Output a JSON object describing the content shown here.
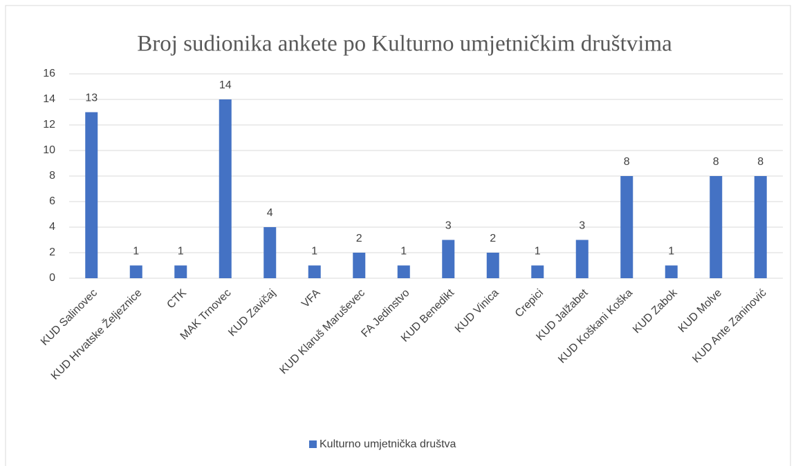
{
  "chart_data": {
    "type": "bar",
    "title": "Broj sudionika ankete po Kulturno  umjetničkim  društvima",
    "categories": [
      "KUD Salinovec",
      "KUD Hrvatske Željeznice",
      "CTK",
      "MAK Trnovec",
      "KUD Zavičaj",
      "VFA",
      "KUD Klaruš Maruševec",
      "FA Jedinstvo",
      "KUD Benedikt",
      "KUD Vinica",
      "Crepici",
      "KUD Jalžabet",
      "KUD Koškani Koška",
      "KUD Zabok",
      "KUD Molve",
      "KUD Ante Zaninović"
    ],
    "series": [
      {
        "name": "Kulturno umjetnička društva",
        "color": "#4472c4",
        "values": [
          13,
          1,
          1,
          14,
          4,
          1,
          2,
          1,
          3,
          2,
          1,
          3,
          8,
          1,
          8,
          8
        ]
      }
    ],
    "ylim": [
      0,
      16
    ],
    "yticks": [
      0,
      2,
      4,
      6,
      8,
      10,
      12,
      14,
      16
    ],
    "grid": true,
    "legend": "bottom"
  }
}
